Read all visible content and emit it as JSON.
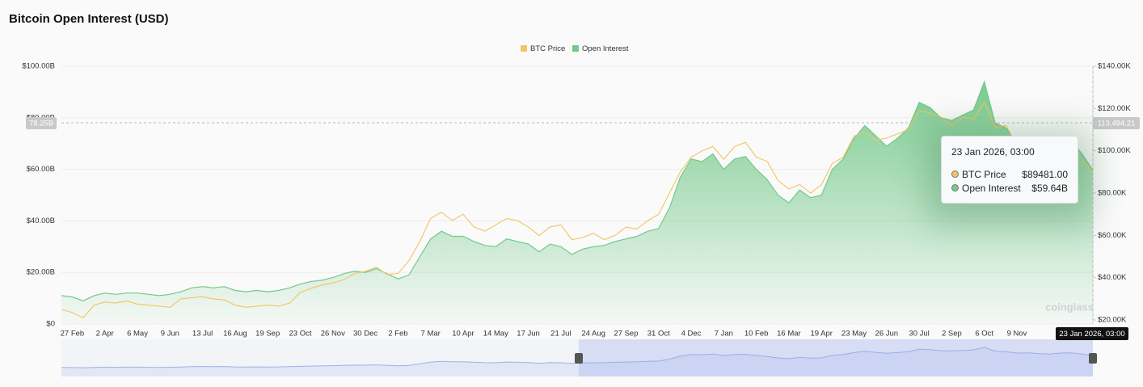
{
  "chart_data": {
    "type": "area-line",
    "title": "Bitcoin Open Interest (USD)",
    "categories": [
      null,
      "27 Feb",
      null,
      null,
      "2 Apr",
      null,
      null,
      "6 May",
      null,
      null,
      "9 Jun",
      null,
      null,
      "13 Jul",
      null,
      null,
      "16 Aug",
      null,
      null,
      "19 Sep",
      null,
      null,
      "23 Oct",
      null,
      null,
      "26 Nov",
      null,
      null,
      "30 Dec",
      null,
      null,
      "2 Feb",
      null,
      null,
      "7 Mar",
      null,
      null,
      "10 Apr",
      null,
      null,
      "14 May",
      null,
      null,
      "17 Jun",
      null,
      null,
      "21 Jul",
      null,
      null,
      "24 Aug",
      null,
      null,
      "27 Sep",
      null,
      null,
      "31 Oct",
      null,
      null,
      "4 Dec",
      null,
      null,
      "7 Jan",
      null,
      null,
      "10 Feb",
      null,
      null,
      "16 Mar",
      null,
      null,
      "19 Apr",
      null,
      null,
      "23 May",
      null,
      null,
      "26 Jun",
      null,
      null,
      "30 Jul",
      null,
      null,
      "2 Sep",
      null,
      null,
      "6 Oct",
      null,
      null,
      "9 Nov",
      null,
      null,
      null,
      null,
      null,
      null,
      null
    ],
    "series": [
      {
        "name": "BTC Price",
        "color": "#f2c462",
        "axis": "y2",
        "values": [
          25,
          23.5,
          21,
          27,
          28.5,
          28,
          29,
          27.5,
          27,
          26.5,
          26,
          30,
          30.5,
          31,
          30,
          29.5,
          27,
          26,
          26.5,
          27,
          26.5,
          28,
          33,
          35,
          36.5,
          37.5,
          39,
          42,
          43,
          45,
          41.5,
          42,
          48,
          57,
          68,
          71,
          67,
          70,
          64,
          62,
          65,
          68,
          67,
          64,
          60,
          64,
          65,
          58,
          59,
          61,
          58,
          60,
          64,
          63,
          67,
          70,
          80,
          90,
          97,
          100,
          102,
          96,
          102,
          104,
          97,
          95,
          86,
          82,
          84,
          80,
          84,
          94,
          97,
          107,
          109,
          105,
          106,
          108,
          110,
          119,
          118,
          116,
          112,
          116,
          115,
          123,
          111,
          112,
          102,
          104,
          92,
          91,
          93,
          94,
          95,
          89.481
        ]
      },
      {
        "name": "Open Interest",
        "color": "#74c98a",
        "values": [
          11,
          10.5,
          9,
          11,
          12,
          11.5,
          12,
          12,
          11.5,
          11,
          11.5,
          12.5,
          14,
          14.5,
          14,
          14.5,
          13,
          12.5,
          13,
          12.5,
          13,
          14,
          15.5,
          16.5,
          17,
          18,
          19.5,
          20.5,
          20,
          21.5,
          19.5,
          17.5,
          19,
          26,
          33,
          36,
          34,
          34,
          32,
          30.5,
          30,
          33,
          32,
          31,
          28,
          31,
          30,
          27,
          29,
          30,
          30.5,
          32,
          33,
          34,
          36,
          37,
          45,
          57,
          64,
          63,
          66,
          60,
          64,
          65,
          60,
          56,
          50,
          47,
          52,
          49,
          50,
          60,
          64,
          72,
          77,
          73,
          69,
          72,
          76,
          86,
          84,
          80,
          79,
          81,
          83,
          94,
          78,
          76,
          70,
          71,
          68,
          66,
          70,
          71,
          66,
          59.64
        ]
      }
    ],
    "ylim": [
      0,
      100
    ],
    "yticks": [
      {
        "value": 0,
        "label": "$0"
      },
      {
        "value": 20,
        "label": "$20.00B"
      },
      {
        "value": 40,
        "label": "$40.00B"
      },
      {
        "value": 60,
        "label": "$60.00B"
      },
      {
        "value": 80,
        "label": "$80.00B"
      },
      {
        "value": 100,
        "label": "$100.00B"
      }
    ],
    "y2lim": [
      18.1,
      140
    ],
    "y2ticks": [
      {
        "value": 20,
        "label": "$20.00K"
      },
      {
        "value": 40,
        "label": "$40.00K"
      },
      {
        "value": 60,
        "label": "$60.00K"
      },
      {
        "value": 80,
        "label": "$80.00K"
      },
      {
        "value": 100,
        "label": "$100.00K"
      },
      {
        "value": 120,
        "label": "$120.00K"
      },
      {
        "value": 140,
        "label": "$140.00K"
      }
    ],
    "grid": true,
    "legend": "top",
    "crosshair": {
      "y_label": "78.25B",
      "y2_label": "113,494.21",
      "x_label": "23 Jan 2026, 03:00"
    },
    "tooltip": {
      "title": "23 Jan 2026, 03:00",
      "rows": [
        {
          "label": "BTC Price",
          "value": "$89481.00"
        },
        {
          "label": "Open Interest",
          "value": "$59.64B"
        }
      ]
    },
    "watermark": "coinglass"
  }
}
